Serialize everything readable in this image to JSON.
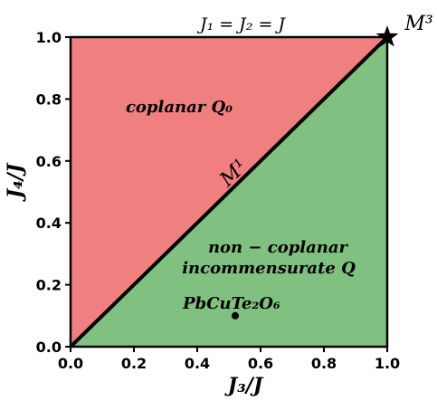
{
  "chart_data": {
    "type": "area",
    "title": "J₁ = J₂ = J",
    "xlabel": "J₃/J",
    "ylabel": "J₄/J",
    "xlim": [
      0.0,
      1.0
    ],
    "ylim": [
      0.0,
      1.0
    ],
    "xticks": [
      "0.0",
      "0.2",
      "0.4",
      "0.6",
      "0.8",
      "1.0"
    ],
    "yticks": [
      "0.0",
      "0.2",
      "0.4",
      "0.6",
      "0.8",
      "1.0"
    ],
    "grid": false,
    "regions": [
      {
        "name": "coplanar Q₀",
        "color": "#f08080",
        "polygon": [
          [
            0,
            0
          ],
          [
            0,
            1
          ],
          [
            1,
            1
          ]
        ]
      },
      {
        "name": "non − coplanar",
        "name_line2": "incommensurate Q",
        "color": "#80c080",
        "polygon": [
          [
            0,
            0
          ],
          [
            1,
            0
          ],
          [
            1,
            1
          ]
        ]
      }
    ],
    "boundary": {
      "label": "M¹",
      "x": [
        0,
        1
      ],
      "y": [
        0,
        1
      ],
      "color": "#000000"
    },
    "points": [
      {
        "label": "PbCuTe₂O₆",
        "x": 0.52,
        "y": 0.1,
        "marker": "dot"
      },
      {
        "label": "M³",
        "x": 1.0,
        "y": 1.0,
        "marker": "star"
      }
    ]
  }
}
